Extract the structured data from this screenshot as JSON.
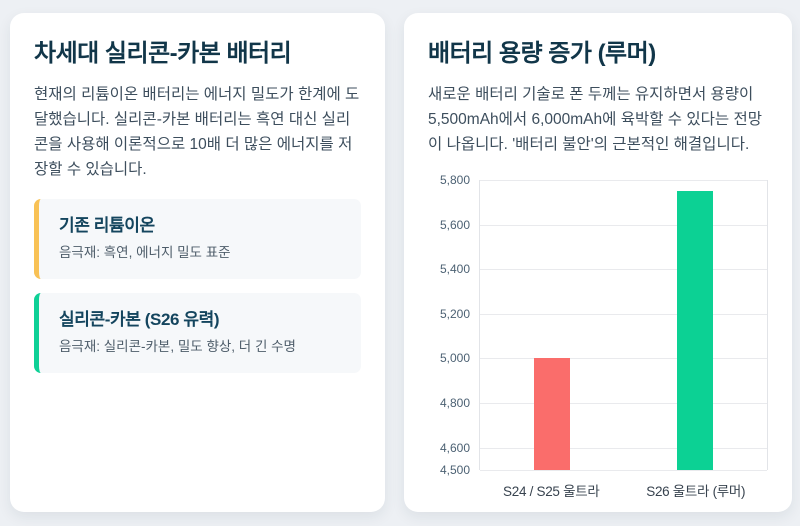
{
  "page": {
    "background_color": "#edf0f4",
    "card_background": "#ffffff",
    "title_color": "#113649"
  },
  "left_card": {
    "title": "차세대 실리콘-카본 배터리",
    "body": "현재의 리튬이온 배터리는 에너지 밀도가 한계에 도달했습니다. 실리콘-카본 배터리는 흑연 대신 실리콘을 사용해 이론적으로 10배 더 많은 에너지를 저장할 수 있습니다.",
    "items": [
      {
        "title": "기존 리튬이온",
        "desc": "음극재: 흑연, 에너지 밀도 표준",
        "accent_color": "#f8c155"
      },
      {
        "title": "실리콘-카본 (S26 유력)",
        "desc": "음극재: 실리콘-카본, 밀도 향상, 더 긴 수명",
        "accent_color": "#0ed096"
      }
    ]
  },
  "right_card": {
    "title": "배터리 용량 증가 (루머)",
    "body": "새로운 배터리 기술로 폰 두께는 유지하면서 용량이 5,500mAh에서 6,000mAh에 육박할 수 있다는 전망이 나옵니다. '배터리 불안'의 근본적인 해결입니다."
  },
  "chart_data": {
    "type": "bar",
    "categories": [
      "S24 / S25 울트라",
      "S26 울트라 (루머)"
    ],
    "values": [
      5000,
      5750
    ],
    "bar_colors": [
      "#fa6d6b",
      "#0cd194"
    ],
    "title": "",
    "xlabel": "",
    "ylabel": "",
    "ylim": [
      4500,
      5800
    ],
    "yticks": [
      4500,
      4600,
      4800,
      5000,
      5200,
      5400,
      5600,
      5800
    ],
    "grid": true,
    "legend": false
  }
}
